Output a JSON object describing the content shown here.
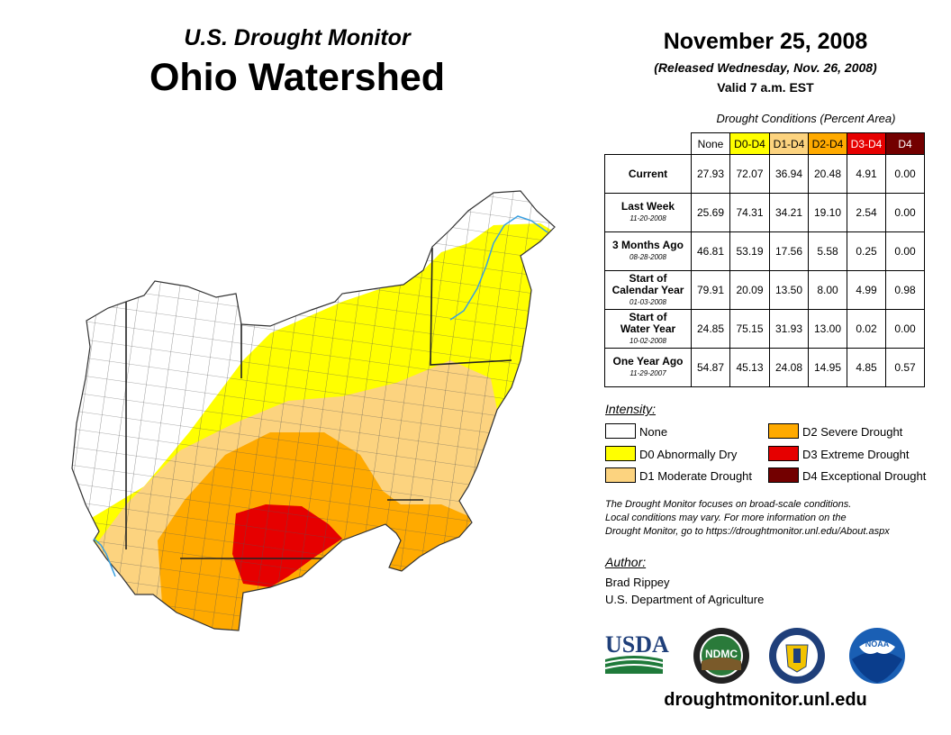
{
  "title": {
    "subtitle": "U.S. Drought Monitor",
    "main": "Ohio Watershed"
  },
  "header": {
    "date": "November 25, 2008",
    "released": "(Released Wednesday, Nov. 26, 2008)",
    "valid": "Valid 7 a.m. EST"
  },
  "table": {
    "caption": "Drought Conditions (Percent Area)",
    "columns": [
      "None",
      "D0-D4",
      "D1-D4",
      "D2-D4",
      "D3-D4",
      "D4"
    ],
    "rows": [
      {
        "label": "Current",
        "label2": "",
        "date": "",
        "values": [
          "27.93",
          "72.07",
          "36.94",
          "20.48",
          "4.91",
          "0.00"
        ]
      },
      {
        "label": "Last Week",
        "label2": "",
        "date": "11-20-2008",
        "values": [
          "25.69",
          "74.31",
          "34.21",
          "19.10",
          "2.54",
          "0.00"
        ]
      },
      {
        "label": "3 Months Ago",
        "label2": "",
        "date": "08-28-2008",
        "values": [
          "46.81",
          "53.19",
          "17.56",
          "5.58",
          "0.25",
          "0.00"
        ]
      },
      {
        "label": "Start of",
        "label2": "Calendar Year",
        "date": "01-03-2008",
        "values": [
          "79.91",
          "20.09",
          "13.50",
          "8.00",
          "4.99",
          "0.98"
        ]
      },
      {
        "label": "Start of",
        "label2": "Water Year",
        "date": "10-02-2008",
        "values": [
          "24.85",
          "75.15",
          "31.93",
          "13.00",
          "0.02",
          "0.00"
        ]
      },
      {
        "label": "One Year Ago",
        "label2": "",
        "date": "11-29-2007",
        "values": [
          "54.87",
          "45.13",
          "24.08",
          "14.95",
          "4.85",
          "0.57"
        ]
      }
    ]
  },
  "legend": {
    "heading": "Intensity:",
    "items": [
      {
        "label": "None",
        "color": "#ffffff"
      },
      {
        "label": "D0 Abnormally Dry",
        "color": "#ffff00"
      },
      {
        "label": "D1 Moderate Drought",
        "color": "#fcd37f"
      },
      {
        "label": "D2 Severe Drought",
        "color": "#ffaa00"
      },
      {
        "label": "D3 Extreme Drought",
        "color": "#e60000"
      },
      {
        "label": "D4 Exceptional Drought",
        "color": "#730000"
      }
    ]
  },
  "note": {
    "line1": "The Drought Monitor focuses on broad-scale conditions.",
    "line2": "Local conditions may vary. For more information on the",
    "line3": "Drought Monitor, go to https://droughtmonitor.unl.edu/About.aspx"
  },
  "author": {
    "heading": "Author:",
    "name": "Brad Rippey",
    "org": "U.S. Department of Agriculture"
  },
  "logos": {
    "usda": "USDA",
    "ndmc": "NDMC",
    "noaa": "NOAA"
  },
  "footer": {
    "url": "droughtmonitor.unl.edu"
  }
}
